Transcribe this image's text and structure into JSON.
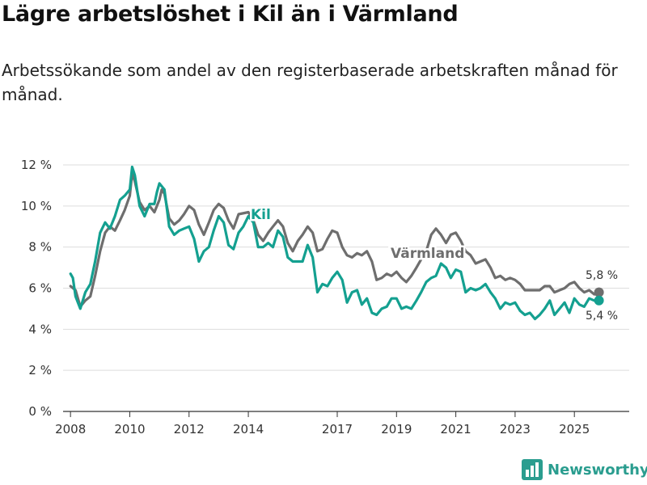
{
  "title": "Lägre arbetslöshet i Kil än i Värmland",
  "subtitle": "Arbetssökande som andel av den registerbaserade arbetskraften månad för månad.",
  "brand": {
    "name": "Newsworthy",
    "icon": "bar-chart-logo-icon"
  },
  "colors": {
    "kil": "#14a090",
    "varmland": "#6e6e6e",
    "grid": "#dddddd",
    "brand": "#2a9d8f"
  },
  "chart_data": {
    "type": "line",
    "title": "Lägre arbetslöshet i Kil än i Värmland",
    "xlabel": "",
    "ylabel": "",
    "ylim": [
      0,
      12
    ],
    "xlim": [
      2007.75,
      2026.85
    ],
    "y_ticks": [
      0,
      2,
      4,
      6,
      8,
      10,
      12
    ],
    "y_tick_labels": [
      "0 %",
      "2 %",
      "4 %",
      "6 %",
      "8 %",
      "10 %",
      "12 %"
    ],
    "x_ticks": [
      2008,
      2010,
      2012,
      2014,
      2017,
      2019,
      2021,
      2023,
      2025
    ],
    "x_tick_labels": [
      "2008",
      "2010",
      "2012",
      "2014",
      "2017",
      "2019",
      "2021",
      "2023",
      "2025"
    ],
    "grid": true,
    "series": [
      {
        "name": "Värmland",
        "color": "#6e6e6e",
        "points": [
          [
            2008.0,
            6.1
          ],
          [
            2008.17,
            5.9
          ],
          [
            2008.33,
            5.1
          ],
          [
            2008.5,
            5.4
          ],
          [
            2008.67,
            5.6
          ],
          [
            2008.83,
            6.6
          ],
          [
            2009.0,
            7.8
          ],
          [
            2009.17,
            8.7
          ],
          [
            2009.33,
            9.0
          ],
          [
            2009.5,
            8.8
          ],
          [
            2009.67,
            9.3
          ],
          [
            2009.83,
            9.8
          ],
          [
            2010.0,
            10.5
          ],
          [
            2010.08,
            11.6
          ],
          [
            2010.17,
            11.2
          ],
          [
            2010.33,
            10.2
          ],
          [
            2010.5,
            9.8
          ],
          [
            2010.67,
            10.0
          ],
          [
            2010.83,
            9.7
          ],
          [
            2011.0,
            10.3
          ],
          [
            2011.08,
            10.8
          ],
          [
            2011.17,
            10.6
          ],
          [
            2011.33,
            9.4
          ],
          [
            2011.5,
            9.1
          ],
          [
            2011.67,
            9.3
          ],
          [
            2011.83,
            9.6
          ],
          [
            2012.0,
            10.0
          ],
          [
            2012.17,
            9.8
          ],
          [
            2012.33,
            9.1
          ],
          [
            2012.5,
            8.6
          ],
          [
            2012.67,
            9.2
          ],
          [
            2012.83,
            9.8
          ],
          [
            2013.0,
            10.1
          ],
          [
            2013.17,
            9.9
          ],
          [
            2013.33,
            9.3
          ],
          [
            2013.5,
            8.9
          ],
          [
            2013.67,
            9.6
          ],
          [
            2014.0,
            9.7
          ],
          [
            2014.17,
            9.3
          ],
          [
            2014.33,
            8.6
          ],
          [
            2014.5,
            8.3
          ],
          [
            2014.67,
            8.7
          ],
          [
            2014.83,
            9.0
          ],
          [
            2015.0,
            9.3
          ],
          [
            2015.17,
            9.0
          ],
          [
            2015.33,
            8.2
          ],
          [
            2015.5,
            7.8
          ],
          [
            2015.67,
            8.3
          ],
          [
            2015.83,
            8.6
          ],
          [
            2016.0,
            9.0
          ],
          [
            2016.17,
            8.7
          ],
          [
            2016.33,
            7.8
          ],
          [
            2016.5,
            7.9
          ],
          [
            2016.67,
            8.4
          ],
          [
            2016.83,
            8.8
          ],
          [
            2017.0,
            8.7
          ],
          [
            2017.17,
            8.0
          ],
          [
            2017.33,
            7.6
          ],
          [
            2017.5,
            7.5
          ],
          [
            2017.67,
            7.7
          ],
          [
            2017.83,
            7.6
          ],
          [
            2018.0,
            7.8
          ],
          [
            2018.17,
            7.3
          ],
          [
            2018.33,
            6.4
          ],
          [
            2018.5,
            6.5
          ],
          [
            2018.67,
            6.7
          ],
          [
            2018.83,
            6.6
          ],
          [
            2019.0,
            6.8
          ],
          [
            2019.17,
            6.5
          ],
          [
            2019.33,
            6.3
          ],
          [
            2019.5,
            6.6
          ],
          [
            2019.67,
            7.0
          ],
          [
            2019.83,
            7.4
          ],
          [
            2020.0,
            7.8
          ],
          [
            2020.17,
            8.6
          ],
          [
            2020.33,
            8.9
          ],
          [
            2020.5,
            8.6
          ],
          [
            2020.67,
            8.2
          ],
          [
            2020.83,
            8.6
          ],
          [
            2021.0,
            8.7
          ],
          [
            2021.17,
            8.3
          ],
          [
            2021.33,
            7.8
          ],
          [
            2021.5,
            7.6
          ],
          [
            2021.67,
            7.2
          ],
          [
            2021.83,
            7.3
          ],
          [
            2022.0,
            7.4
          ],
          [
            2022.17,
            7.0
          ],
          [
            2022.33,
            6.5
          ],
          [
            2022.5,
            6.6
          ],
          [
            2022.67,
            6.4
          ],
          [
            2022.83,
            6.5
          ],
          [
            2023.0,
            6.4
          ],
          [
            2023.17,
            6.2
          ],
          [
            2023.33,
            5.9
          ],
          [
            2023.5,
            5.9
          ],
          [
            2023.67,
            5.9
          ],
          [
            2023.83,
            5.9
          ],
          [
            2024.0,
            6.1
          ],
          [
            2024.17,
            6.1
          ],
          [
            2024.33,
            5.8
          ],
          [
            2024.5,
            5.9
          ],
          [
            2024.67,
            6.0
          ],
          [
            2024.83,
            6.2
          ],
          [
            2025.0,
            6.3
          ],
          [
            2025.17,
            6.0
          ],
          [
            2025.33,
            5.8
          ],
          [
            2025.5,
            5.9
          ],
          [
            2025.67,
            5.7
          ],
          [
            2025.83,
            5.8
          ]
        ],
        "end_value_label": "5,8 %"
      },
      {
        "name": "Kil",
        "color": "#14a090",
        "points": [
          [
            2008.0,
            6.7
          ],
          [
            2008.08,
            6.5
          ],
          [
            2008.17,
            5.6
          ],
          [
            2008.33,
            5.0
          ],
          [
            2008.5,
            5.8
          ],
          [
            2008.67,
            6.2
          ],
          [
            2008.83,
            7.3
          ],
          [
            2009.0,
            8.7
          ],
          [
            2009.17,
            9.2
          ],
          [
            2009.33,
            8.9
          ],
          [
            2009.5,
            9.5
          ],
          [
            2009.67,
            10.3
          ],
          [
            2009.83,
            10.5
          ],
          [
            2010.0,
            10.8
          ],
          [
            2010.08,
            11.9
          ],
          [
            2010.17,
            11.5
          ],
          [
            2010.33,
            10.0
          ],
          [
            2010.5,
            9.5
          ],
          [
            2010.67,
            10.1
          ],
          [
            2010.83,
            10.1
          ],
          [
            2010.92,
            10.7
          ],
          [
            2011.0,
            11.1
          ],
          [
            2011.17,
            10.8
          ],
          [
            2011.33,
            9.0
          ],
          [
            2011.5,
            8.6
          ],
          [
            2011.67,
            8.8
          ],
          [
            2011.83,
            8.9
          ],
          [
            2012.0,
            9.0
          ],
          [
            2012.17,
            8.4
          ],
          [
            2012.33,
            7.3
          ],
          [
            2012.5,
            7.8
          ],
          [
            2012.67,
            8.0
          ],
          [
            2012.83,
            8.8
          ],
          [
            2013.0,
            9.5
          ],
          [
            2013.17,
            9.2
          ],
          [
            2013.33,
            8.1
          ],
          [
            2013.5,
            7.9
          ],
          [
            2013.67,
            8.7
          ],
          [
            2013.83,
            9.0
          ],
          [
            2014.0,
            9.5
          ],
          [
            2014.17,
            9.2
          ],
          [
            2014.33,
            8.0
          ],
          [
            2014.5,
            8.0
          ],
          [
            2014.67,
            8.2
          ],
          [
            2014.83,
            8.0
          ],
          [
            2015.0,
            8.8
          ],
          [
            2015.17,
            8.5
          ],
          [
            2015.33,
            7.5
          ],
          [
            2015.5,
            7.3
          ],
          [
            2015.67,
            7.3
          ],
          [
            2015.83,
            7.3
          ],
          [
            2016.0,
            8.1
          ],
          [
            2016.17,
            7.5
          ],
          [
            2016.33,
            5.8
          ],
          [
            2016.5,
            6.2
          ],
          [
            2016.67,
            6.1
          ],
          [
            2016.83,
            6.5
          ],
          [
            2017.0,
            6.8
          ],
          [
            2017.17,
            6.4
          ],
          [
            2017.33,
            5.3
          ],
          [
            2017.5,
            5.8
          ],
          [
            2017.67,
            5.9
          ],
          [
            2017.83,
            5.2
          ],
          [
            2018.0,
            5.5
          ],
          [
            2018.17,
            4.8
          ],
          [
            2018.33,
            4.7
          ],
          [
            2018.5,
            5.0
          ],
          [
            2018.67,
            5.1
          ],
          [
            2018.83,
            5.5
          ],
          [
            2019.0,
            5.5
          ],
          [
            2019.17,
            5.0
          ],
          [
            2019.33,
            5.1
          ],
          [
            2019.5,
            5.0
          ],
          [
            2019.67,
            5.4
          ],
          [
            2019.83,
            5.8
          ],
          [
            2020.0,
            6.3
          ],
          [
            2020.17,
            6.5
          ],
          [
            2020.33,
            6.6
          ],
          [
            2020.5,
            7.2
          ],
          [
            2020.67,
            7.0
          ],
          [
            2020.83,
            6.5
          ],
          [
            2021.0,
            6.9
          ],
          [
            2021.17,
            6.8
          ],
          [
            2021.33,
            5.8
          ],
          [
            2021.5,
            6.0
          ],
          [
            2021.67,
            5.9
          ],
          [
            2021.83,
            6.0
          ],
          [
            2022.0,
            6.2
          ],
          [
            2022.17,
            5.8
          ],
          [
            2022.33,
            5.5
          ],
          [
            2022.5,
            5.0
          ],
          [
            2022.67,
            5.3
          ],
          [
            2022.83,
            5.2
          ],
          [
            2023.0,
            5.3
          ],
          [
            2023.17,
            4.9
          ],
          [
            2023.33,
            4.7
          ],
          [
            2023.5,
            4.8
          ],
          [
            2023.67,
            4.5
          ],
          [
            2023.83,
            4.7
          ],
          [
            2024.0,
            5.0
          ],
          [
            2024.17,
            5.4
          ],
          [
            2024.33,
            4.7
          ],
          [
            2024.5,
            5.0
          ],
          [
            2024.67,
            5.3
          ],
          [
            2024.83,
            4.8
          ],
          [
            2025.0,
            5.5
          ],
          [
            2025.17,
            5.2
          ],
          [
            2025.33,
            5.1
          ],
          [
            2025.5,
            5.5
          ],
          [
            2025.67,
            5.4
          ],
          [
            2025.83,
            5.4
          ]
        ],
        "end_value_label": "5,4 %"
      }
    ]
  }
}
